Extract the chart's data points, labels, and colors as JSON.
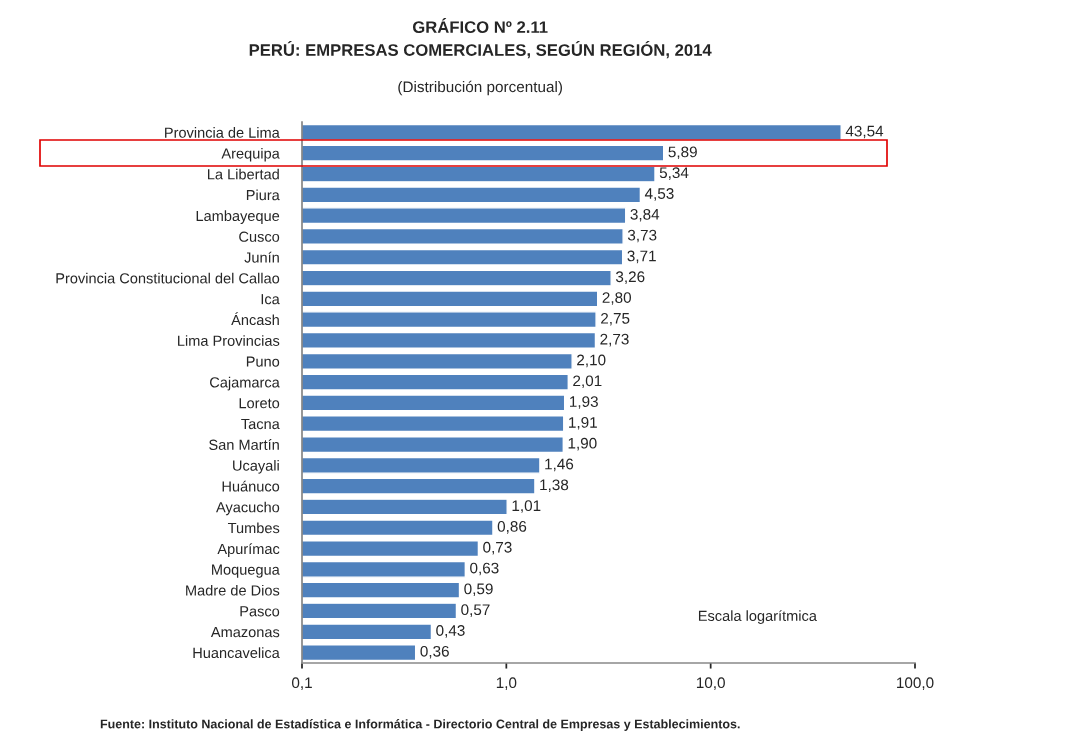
{
  "chart_data": {
    "type": "bar",
    "orientation": "horizontal",
    "title": "GRÁFICO Nº 2.11\nPERÚ: EMPRESAS COMERCIALES, SEGÚN REGIÓN, 2014",
    "subtitle": "(Distribución porcentual)",
    "categories": [
      "Provincia de Lima",
      "Arequipa",
      "La Libertad",
      "Piura",
      "Lambayeque",
      "Cusco",
      "Junín",
      "Provincia Constitucional del Callao",
      "Ica",
      "Áncash",
      "Lima Provincias",
      "Puno",
      "Cajamarca",
      "Loreto",
      "Tacna",
      "San Martín",
      "Ucayali",
      "Huánuco",
      "Ayacucho",
      "Tumbes",
      "Apurímac",
      "Moquegua",
      "Madre de Dios",
      "Pasco",
      "Amazonas",
      "Huancavelica"
    ],
    "values": [
      43.54,
      5.89,
      5.34,
      4.53,
      3.84,
      3.73,
      3.71,
      3.26,
      2.8,
      2.75,
      2.73,
      2.1,
      2.01,
      1.93,
      1.91,
      1.9,
      1.46,
      1.38,
      1.01,
      0.86,
      0.73,
      0.63,
      0.59,
      0.57,
      0.43,
      0.36
    ],
    "value_labels": [
      "43,54",
      "5,89",
      "5,34",
      "4,53",
      "3,84",
      "3,73",
      "3,71",
      "3,26",
      "2,80",
      "2,75",
      "2,73",
      "2,10",
      "2,01",
      "1,93",
      "1,91",
      "1,90",
      "1,46",
      "1,38",
      "1,01",
      "0,86",
      "0,73",
      "0,63",
      "0,59",
      "0,57",
      "0,43",
      "0,36"
    ],
    "color": "#4f81bd",
    "log": "x",
    "xlim": [
      0.1,
      100
    ],
    "xticks": [
      {
        "value": 0.1,
        "label": "0,1"
      },
      {
        "value": 1,
        "label": "1,0"
      },
      {
        "value": 10,
        "label": "10,0"
      },
      {
        "value": 100,
        "label": "100,0"
      }
    ],
    "grid": false,
    "legend": false,
    "annotations": [
      "Escala logarítmica",
      "Fuente: Instituto Nacional de Estadística e Informática - Directorio Central de Empresas y Establecimientos."
    ]
  }
}
